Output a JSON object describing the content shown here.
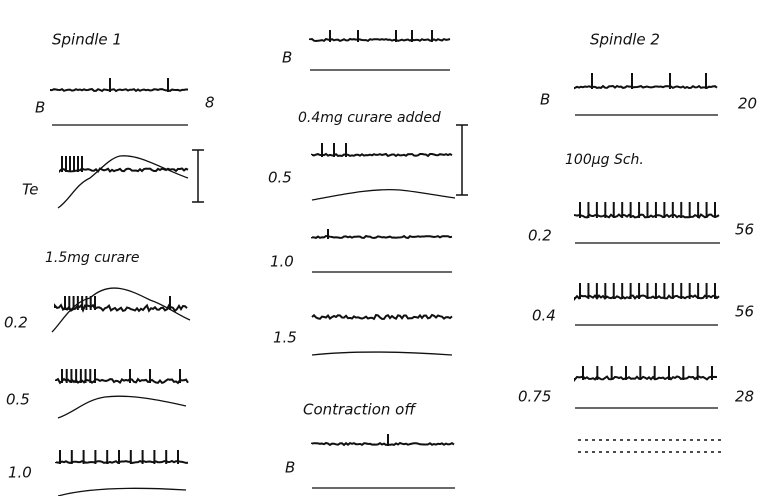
{
  "columns": [
    {
      "heading": "Spindle 1",
      "rows": [
        {
          "label": "B",
          "rate": 8
        },
        {
          "label": "Te"
        }
      ],
      "subheading": "1.5mg curare",
      "subrows": [
        {
          "label": "0.2"
        },
        {
          "label": "0.5"
        },
        {
          "label": "1.0"
        }
      ]
    },
    {
      "rows": [
        {
          "label": "B"
        }
      ],
      "subheading": "0.4mg curare added",
      "subrows": [
        {
          "label": "0.5"
        },
        {
          "label": "1.0"
        },
        {
          "label": "1.5"
        }
      ],
      "subheading2": "Contraction off",
      "subrows2": [
        {
          "label": "B"
        }
      ]
    },
    {
      "heading": "Spindle 2",
      "rows": [
        {
          "label": "B",
          "rate": 20
        }
      ],
      "subheading": "100µg Sch.",
      "subrows": [
        {
          "label": "0.2",
          "rate": 56
        },
        {
          "label": "0.4",
          "rate": 56
        },
        {
          "label": "0.75",
          "rate": 28
        }
      ]
    }
  ]
}
